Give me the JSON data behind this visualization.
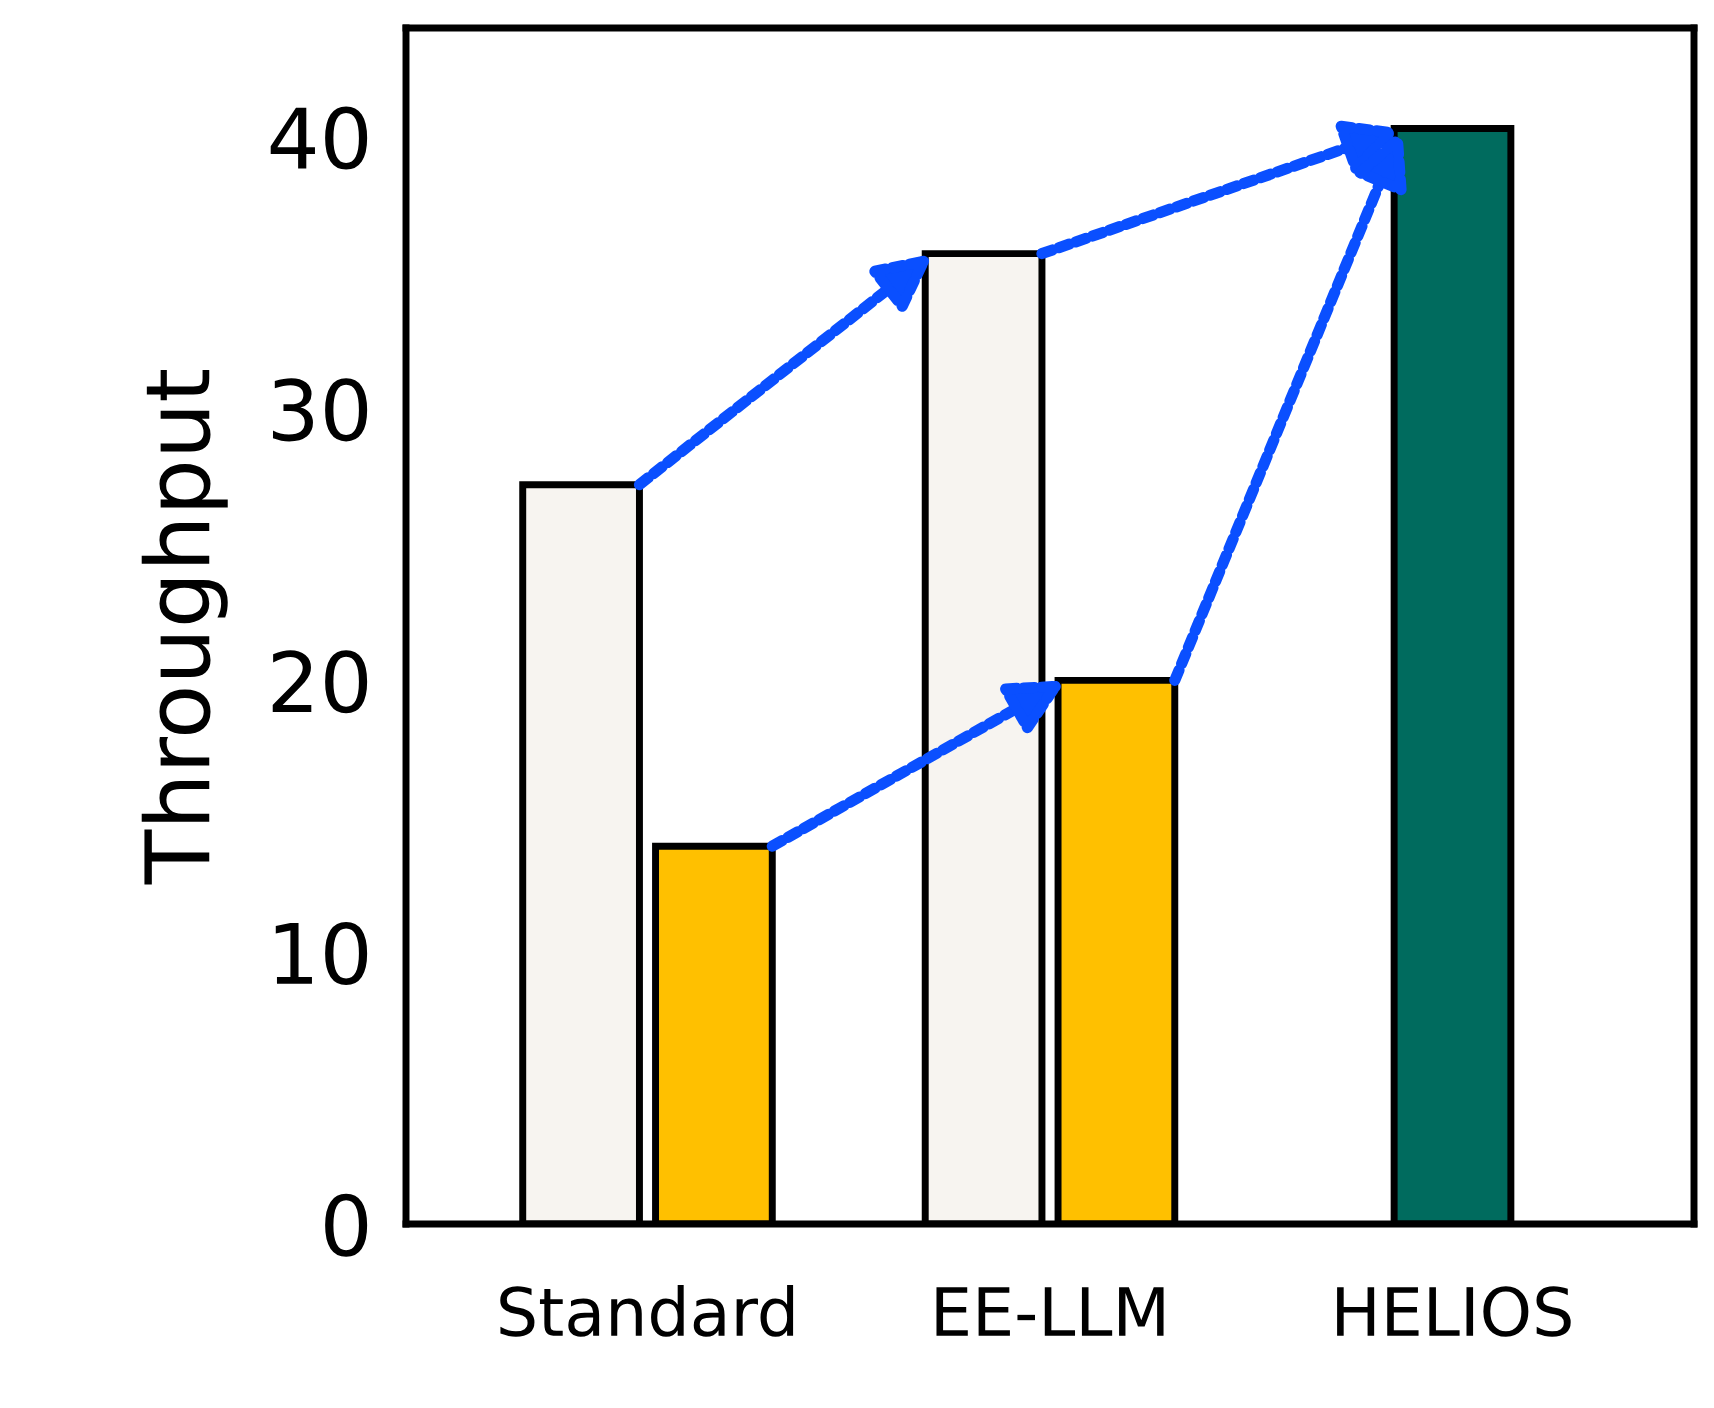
{
  "chart_data": {
    "type": "bar",
    "ylabel": "Throughput",
    "categories": [
      "Standard",
      "EE-LLM",
      "HELIOS"
    ],
    "series": [
      {
        "color": "#f7f4f0",
        "values": [
          27.2,
          35.7,
          null
        ]
      },
      {
        "color": "#ffc000",
        "values": [
          13.9,
          20.0,
          null
        ]
      },
      {
        "color": "#006b5e",
        "values": [
          null,
          null,
          40.3
        ]
      }
    ],
    "ylim": [
      0,
      44
    ],
    "yticks": [
      0,
      10,
      20,
      30,
      40
    ],
    "grid": false,
    "legend": false
  }
}
